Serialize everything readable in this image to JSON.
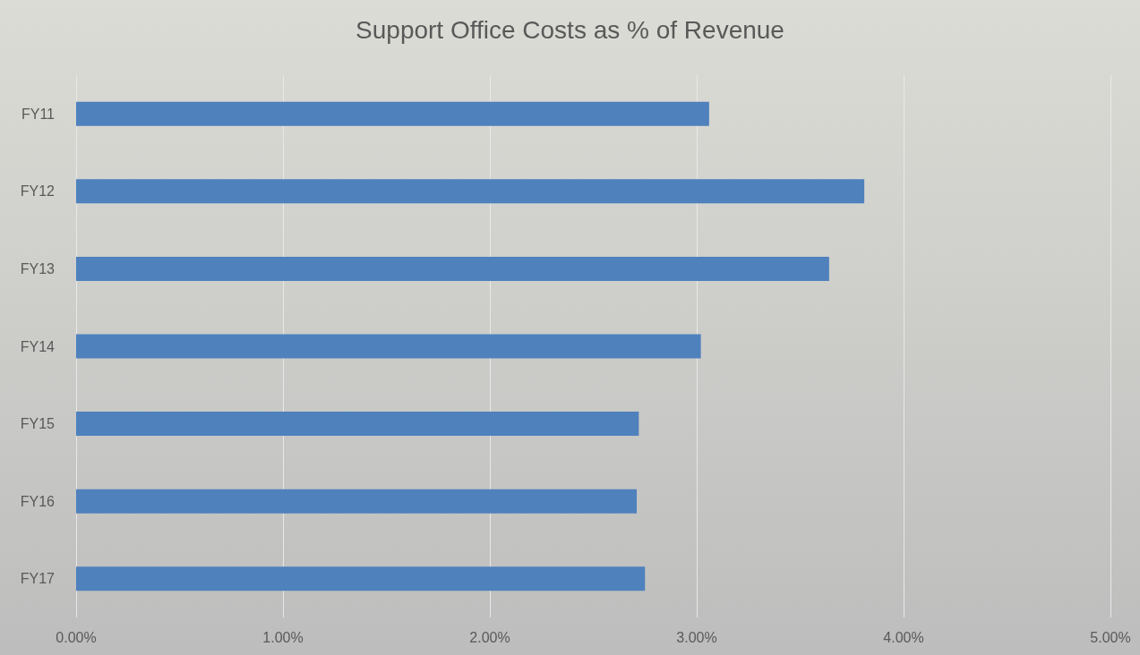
{
  "chart_data": {
    "type": "bar",
    "orientation": "horizontal",
    "title": "Support Office Costs as % of Revenue",
    "categories": [
      "FY11",
      "FY12",
      "FY13",
      "FY14",
      "FY15",
      "FY16",
      "FY17"
    ],
    "values": [
      3.06,
      3.81,
      3.64,
      3.02,
      2.72,
      2.71,
      2.75
    ],
    "color": "#4f81bd",
    "xlim": [
      0,
      5
    ],
    "xticks": [
      {
        "value": 0,
        "label": "0.00%"
      },
      {
        "value": 1,
        "label": "1.00%"
      },
      {
        "value": 2,
        "label": "2.00%"
      },
      {
        "value": 3,
        "label": "3.00%"
      },
      {
        "value": 4,
        "label": "4.00%"
      },
      {
        "value": 5,
        "label": "5.00%"
      }
    ],
    "grid": "x"
  }
}
